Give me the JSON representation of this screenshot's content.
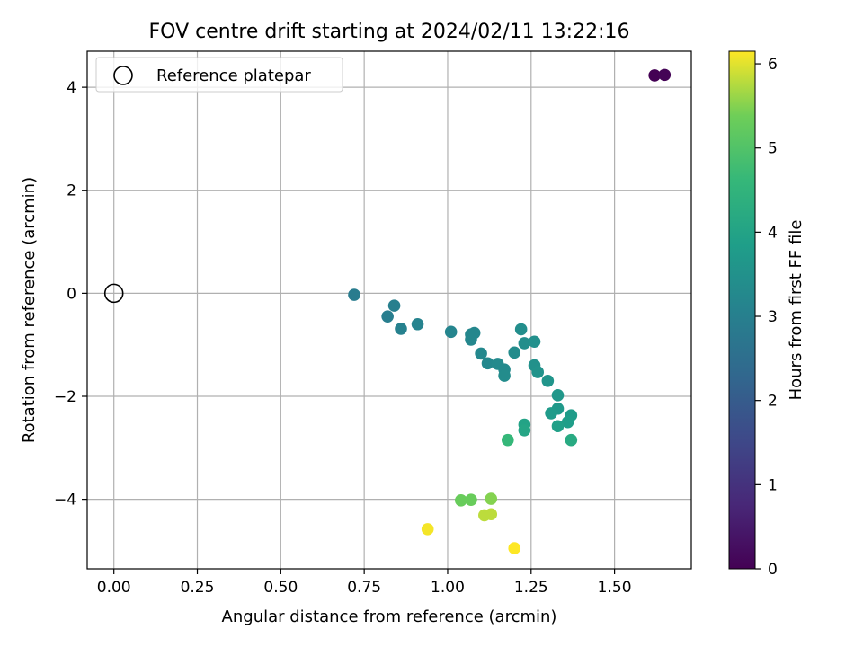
{
  "chart_data": {
    "type": "scatter",
    "title": "FOV centre drift starting at 2024/02/11 13:22:16",
    "xlabel": "Angular distance from reference (arcmin)",
    "ylabel": "Rotation from reference (arcmin)",
    "xlim": [
      -0.08,
      1.73
    ],
    "ylim": [
      -5.35,
      4.7
    ],
    "x_ticks": [
      0.0,
      0.25,
      0.5,
      0.75,
      1.0,
      1.25,
      1.5
    ],
    "x_tick_labels": [
      "0.00",
      "0.25",
      "0.50",
      "0.75",
      "1.00",
      "1.25",
      "1.50"
    ],
    "y_ticks": [
      -4,
      -2,
      0,
      2,
      4
    ],
    "y_tick_labels": [
      "−4",
      "−2",
      "0",
      "2",
      "4"
    ],
    "grid": true,
    "legend": {
      "placement": "upper-left",
      "entries": [
        "Reference platepar"
      ]
    },
    "reference_point": {
      "x": 0.0,
      "y": 0.0
    },
    "colorbar": {
      "label": "Hours from first FF file",
      "range": [
        0,
        6.15
      ],
      "ticks": [
        0,
        1,
        2,
        3,
        4,
        5,
        6
      ],
      "tick_labels": [
        "0",
        "1",
        "2",
        "3",
        "4",
        "5",
        "6"
      ],
      "colormap": "viridis"
    },
    "points": [
      {
        "x": 1.62,
        "y": 4.23,
        "c": 0.0
      },
      {
        "x": 1.65,
        "y": 4.24,
        "c": 0.05
      },
      {
        "x": 0.72,
        "y": -0.03,
        "c": 2.9
      },
      {
        "x": 0.82,
        "y": -0.45,
        "c": 2.95
      },
      {
        "x": 0.84,
        "y": -0.24,
        "c": 3.0
      },
      {
        "x": 0.86,
        "y": -0.69,
        "c": 3.05
      },
      {
        "x": 0.91,
        "y": -0.6,
        "c": 3.1
      },
      {
        "x": 1.01,
        "y": -0.75,
        "c": 3.15
      },
      {
        "x": 1.07,
        "y": -0.8,
        "c": 3.2
      },
      {
        "x": 1.07,
        "y": -0.9,
        "c": 3.2
      },
      {
        "x": 1.08,
        "y": -0.77,
        "c": 3.2
      },
      {
        "x": 1.1,
        "y": -1.17,
        "c": 3.25
      },
      {
        "x": 1.12,
        "y": -1.36,
        "c": 3.25
      },
      {
        "x": 1.15,
        "y": -1.37,
        "c": 3.3
      },
      {
        "x": 1.17,
        "y": -1.48,
        "c": 3.3
      },
      {
        "x": 1.17,
        "y": -1.6,
        "c": 3.35
      },
      {
        "x": 1.2,
        "y": -1.15,
        "c": 3.35
      },
      {
        "x": 1.22,
        "y": -0.7,
        "c": 3.4
      },
      {
        "x": 1.23,
        "y": -0.97,
        "c": 3.4
      },
      {
        "x": 1.26,
        "y": -0.94,
        "c": 3.45
      },
      {
        "x": 1.26,
        "y": -1.4,
        "c": 3.5
      },
      {
        "x": 1.27,
        "y": -1.53,
        "c": 3.55
      },
      {
        "x": 1.3,
        "y": -1.7,
        "c": 3.6
      },
      {
        "x": 1.33,
        "y": -1.98,
        "c": 3.65
      },
      {
        "x": 1.33,
        "y": -2.24,
        "c": 3.7
      },
      {
        "x": 1.31,
        "y": -2.33,
        "c": 3.75
      },
      {
        "x": 1.37,
        "y": -2.37,
        "c": 3.8
      },
      {
        "x": 1.36,
        "y": -2.5,
        "c": 3.85
      },
      {
        "x": 1.33,
        "y": -2.58,
        "c": 3.9
      },
      {
        "x": 1.23,
        "y": -2.55,
        "c": 4.0
      },
      {
        "x": 1.23,
        "y": -2.66,
        "c": 4.05
      },
      {
        "x": 1.37,
        "y": -2.85,
        "c": 4.2
      },
      {
        "x": 1.18,
        "y": -2.85,
        "c": 4.6
      },
      {
        "x": 1.04,
        "y": -4.02,
        "c": 5.3
      },
      {
        "x": 1.07,
        "y": -4.01,
        "c": 5.3
      },
      {
        "x": 1.13,
        "y": -3.99,
        "c": 5.5
      },
      {
        "x": 1.11,
        "y": -4.31,
        "c": 5.8
      },
      {
        "x": 1.13,
        "y": -4.29,
        "c": 5.8
      },
      {
        "x": 0.94,
        "y": -4.58,
        "c": 6.1
      },
      {
        "x": 1.2,
        "y": -4.95,
        "c": 6.15
      }
    ]
  }
}
